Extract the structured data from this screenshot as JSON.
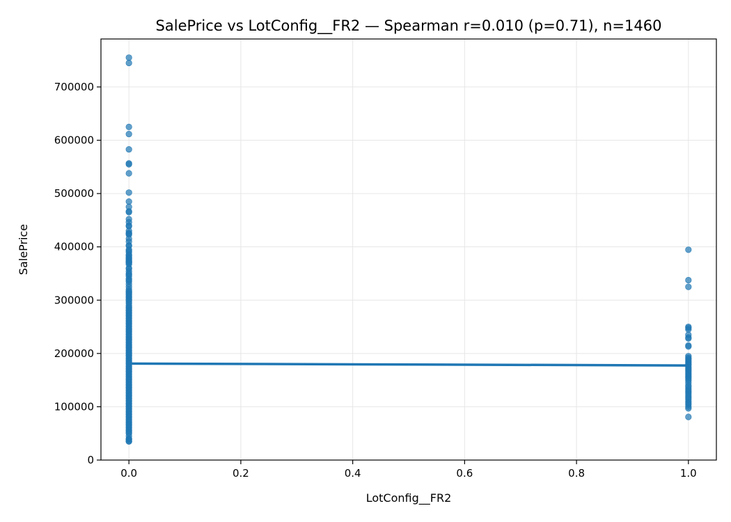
{
  "chart_data": {
    "type": "scatter",
    "title": "SalePrice vs LotConfig__FR2 — Spearman r=0.010 (p=0.71), n=1460",
    "xlabel": "LotConfig__FR2",
    "ylabel": "SalePrice",
    "xlim": [
      -0.05,
      1.05
    ],
    "ylim": [
      0,
      790000
    ],
    "xticks": [
      0.0,
      0.2,
      0.4,
      0.6,
      0.8,
      1.0
    ],
    "xtick_labels": [
      "0.0",
      "0.2",
      "0.4",
      "0.6",
      "0.8",
      "1.0"
    ],
    "yticks": [
      0,
      100000,
      200000,
      300000,
      400000,
      500000,
      600000,
      700000
    ],
    "ytick_labels": [
      "0",
      "100000",
      "200000",
      "300000",
      "400000",
      "500000",
      "600000",
      "700000"
    ],
    "grid": true,
    "color": "#1f77b4",
    "series": [
      {
        "name": "LotConfig__FR2 = 0",
        "x": 0,
        "values": [
          755000,
          745000,
          625000,
          611657,
          582933,
          556581,
          555000,
          538000,
          501837,
          485000,
          475000,
          466500,
          465000,
          451950,
          446261,
          440000,
          438780,
          430000,
          426000,
          424870,
          423000,
          415298,
          410000,
          402861,
          402000,
          395000,
          392500,
          390000,
          385000,
          383970,
          381000,
          378500,
          377426,
          375000,
          372500,
          372402,
          370878,
          369900,
          367294,
          360000,
          359100,
          354000,
          350000,
          348000,
          345000,
          340000,
          337500,
          335000,
          330000,
          325000,
          320000,
          317000,
          315000,
          312500,
          310000,
          307000,
          305000,
          302000,
          300000,
          297000,
          294000,
          290000,
          287000,
          285000,
          282000,
          280000,
          277000,
          275000,
          272000,
          270000,
          267000,
          265000,
          262000,
          260000,
          257000,
          255000,
          252000,
          250000,
          247000,
          245000,
          242000,
          240000,
          237000,
          235000,
          232000,
          230000,
          227000,
          225000,
          222000,
          220000,
          217000,
          215000,
          212000,
          210000,
          207000,
          205000,
          202000,
          200000,
          197000,
          195000,
          192000,
          190000,
          187000,
          185000,
          182000,
          180000,
          177000,
          175000,
          172000,
          170000,
          167000,
          165000,
          162000,
          160000,
          157000,
          155000,
          152000,
          150000,
          147000,
          145000,
          142000,
          140000,
          137000,
          135000,
          132000,
          130000,
          127000,
          125000,
          122000,
          120000,
          117000,
          115000,
          112000,
          110000,
          107000,
          105000,
          102000,
          100000,
          97000,
          95000,
          92000,
          90000,
          87000,
          85000,
          82000,
          80000,
          77000,
          75000,
          72000,
          70000,
          67000,
          65000,
          62000,
          60000,
          57000,
          55000,
          52000,
          50000,
          45000,
          40000,
          39300,
          37900,
          35311,
          34900
        ]
      },
      {
        "name": "LotConfig__FR2 = 1",
        "x": 1,
        "values": [
          394617,
          337500,
          325000,
          250000,
          248000,
          245000,
          235000,
          230000,
          228000,
          215000,
          213000,
          195000,
          192000,
          190000,
          187500,
          185000,
          183000,
          180000,
          178000,
          175000,
          172500,
          170000,
          168000,
          165000,
          162000,
          160000,
          157000,
          155000,
          152000,
          149000,
          145000,
          140000,
          137000,
          133000,
          130000,
          127000,
          124000,
          120000,
          117000,
          114000,
          110000,
          107000,
          104000,
          100000,
          97000,
          81000
        ]
      }
    ],
    "fit_line": {
      "x": [
        0,
        1
      ],
      "y": [
        181000,
        177500
      ]
    }
  }
}
